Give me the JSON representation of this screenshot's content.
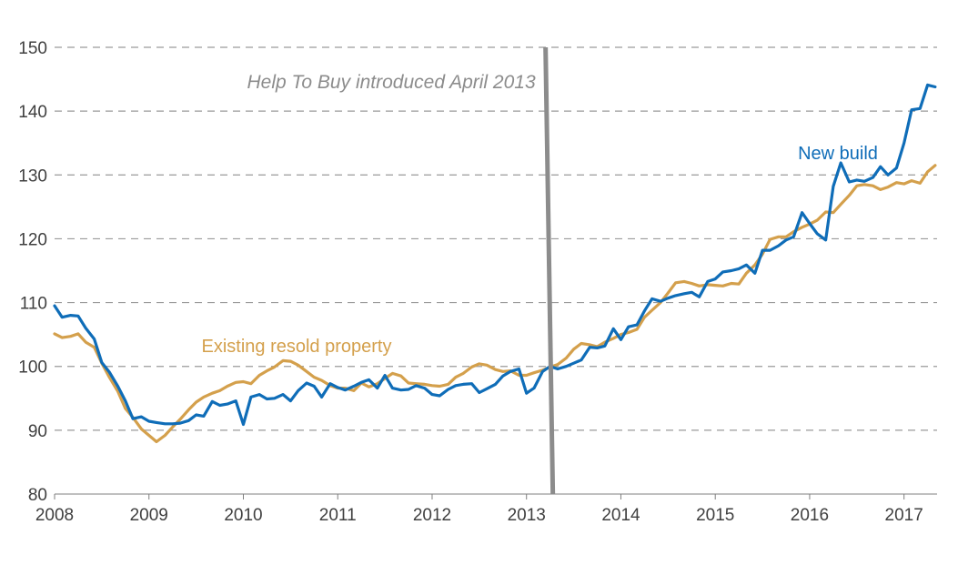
{
  "chart_data": {
    "type": "line",
    "title": "",
    "xlabel": "",
    "ylabel": "",
    "xlim": [
      2008,
      2017.35
    ],
    "ylim": [
      80,
      150
    ],
    "y_ticks": [
      80,
      90,
      100,
      110,
      120,
      130,
      140,
      150
    ],
    "x_ticks": [
      2008,
      2009,
      2010,
      2011,
      2012,
      2013,
      2014,
      2015,
      2016,
      2017
    ],
    "x_tick_labels": [
      "2008",
      "2009",
      "2010",
      "2011",
      "2012",
      "2013",
      "2014",
      "2015",
      "2016",
      "2017"
    ],
    "y_tick_labels": [
      "80",
      "90",
      "100",
      "110",
      "120",
      "130",
      "140",
      "150"
    ],
    "grid": "horizontal dashed",
    "annotation": {
      "text": "Help To Buy introduced April 2013",
      "x": 2013.25,
      "color": "#8c8c8c"
    },
    "series": [
      {
        "name": "New build",
        "color": "#0f6db8",
        "x": [
          2008.0,
          2008.08,
          2008.17,
          2008.25,
          2008.33,
          2008.42,
          2008.5,
          2008.58,
          2008.67,
          2008.75,
          2008.83,
          2008.92,
          2009.0,
          2009.08,
          2009.17,
          2009.25,
          2009.33,
          2009.42,
          2009.5,
          2009.58,
          2009.67,
          2009.75,
          2009.83,
          2009.92,
          2010.0,
          2010.08,
          2010.17,
          2010.25,
          2010.33,
          2010.42,
          2010.5,
          2010.58,
          2010.67,
          2010.75,
          2010.83,
          2010.92,
          2011.0,
          2011.08,
          2011.17,
          2011.25,
          2011.33,
          2011.42,
          2011.5,
          2011.58,
          2011.67,
          2011.75,
          2011.83,
          2011.92,
          2012.0,
          2012.08,
          2012.17,
          2012.25,
          2012.33,
          2012.42,
          2012.5,
          2012.58,
          2012.67,
          2012.75,
          2012.83,
          2012.92,
          2013.0,
          2013.08,
          2013.17,
          2013.25,
          2013.33,
          2013.42,
          2013.5,
          2013.58,
          2013.67,
          2013.75,
          2013.83,
          2013.92,
          2014.0,
          2014.08,
          2014.17,
          2014.25,
          2014.33,
          2014.42,
          2014.5,
          2014.58,
          2014.67,
          2014.75,
          2014.83,
          2014.92,
          2015.0,
          2015.08,
          2015.17,
          2015.25,
          2015.33,
          2015.42,
          2015.5,
          2015.58,
          2015.67,
          2015.75,
          2015.83,
          2015.92,
          2016.0,
          2016.08,
          2016.17,
          2016.25,
          2016.33,
          2016.42,
          2016.5,
          2016.58,
          2016.67,
          2016.75,
          2016.83,
          2016.92,
          2017.0,
          2017.08,
          2017.17,
          2017.25,
          2017.33
        ],
        "values": [
          109.5,
          107.7,
          108.0,
          107.9,
          106.0,
          104.3,
          100.6,
          99.1,
          96.9,
          94.6,
          91.8,
          92.1,
          91.4,
          91.2,
          91.0,
          91.0,
          91.1,
          91.5,
          92.4,
          92.2,
          94.5,
          93.9,
          94.1,
          94.6,
          90.9,
          95.2,
          95.6,
          94.9,
          95.0,
          95.6,
          94.6,
          96.2,
          97.4,
          96.9,
          95.2,
          97.3,
          96.7,
          96.3,
          96.9,
          97.5,
          97.9,
          96.6,
          98.6,
          96.6,
          96.3,
          96.4,
          97.0,
          96.6,
          95.6,
          95.4,
          96.4,
          97.0,
          97.2,
          97.3,
          95.9,
          96.5,
          97.2,
          98.5,
          99.2,
          99.6,
          95.8,
          96.6,
          99.2,
          100.0,
          99.6,
          100.0,
          100.5,
          101.0,
          103.0,
          102.9,
          103.2,
          105.9,
          104.2,
          106.2,
          106.5,
          108.7,
          110.6,
          110.2,
          110.7,
          111.1,
          111.4,
          111.6,
          110.9,
          113.3,
          113.7,
          114.8,
          115.0,
          115.3,
          115.9,
          114.6,
          118.2,
          118.2,
          118.9,
          119.8,
          120.3,
          124.1,
          122.4,
          120.8,
          119.8,
          128.2,
          131.9,
          128.9,
          129.2,
          129.0,
          129.6,
          131.3,
          130.0,
          131.1,
          135.0,
          140.2,
          140.4,
          144.1,
          143.8
        ]
      },
      {
        "name": "Existing resold property",
        "color": "#d4a04c",
        "x": [
          2008.0,
          2008.08,
          2008.17,
          2008.25,
          2008.33,
          2008.42,
          2008.5,
          2008.58,
          2008.67,
          2008.75,
          2008.83,
          2008.92,
          2009.0,
          2009.08,
          2009.17,
          2009.25,
          2009.33,
          2009.42,
          2009.5,
          2009.58,
          2009.67,
          2009.75,
          2009.83,
          2009.92,
          2010.0,
          2010.08,
          2010.17,
          2010.25,
          2010.33,
          2010.42,
          2010.5,
          2010.58,
          2010.67,
          2010.75,
          2010.83,
          2010.92,
          2011.0,
          2011.08,
          2011.17,
          2011.25,
          2011.33,
          2011.42,
          2011.5,
          2011.58,
          2011.67,
          2011.75,
          2011.83,
          2011.92,
          2012.0,
          2012.08,
          2012.17,
          2012.25,
          2012.33,
          2012.42,
          2012.5,
          2012.58,
          2012.67,
          2012.75,
          2012.83,
          2012.92,
          2013.0,
          2013.08,
          2013.17,
          2013.25,
          2013.33,
          2013.42,
          2013.5,
          2013.58,
          2013.67,
          2013.75,
          2013.83,
          2013.92,
          2014.0,
          2014.08,
          2014.17,
          2014.25,
          2014.33,
          2014.42,
          2014.5,
          2014.58,
          2014.67,
          2014.75,
          2014.83,
          2014.92,
          2015.0,
          2015.08,
          2015.17,
          2015.25,
          2015.33,
          2015.42,
          2015.5,
          2015.58,
          2015.67,
          2015.75,
          2015.83,
          2015.92,
          2016.0,
          2016.08,
          2016.17,
          2016.25,
          2016.33,
          2016.42,
          2016.5,
          2016.58,
          2016.67,
          2016.75,
          2016.83,
          2016.92,
          2017.0,
          2017.08,
          2017.17,
          2017.25,
          2017.33
        ],
        "values": [
          105.1,
          104.5,
          104.7,
          105.1,
          103.8,
          103.0,
          100.5,
          98.3,
          96.1,
          93.4,
          92.0,
          90.2,
          89.2,
          88.2,
          89.2,
          90.5,
          91.7,
          93.2,
          94.4,
          95.2,
          95.8,
          96.2,
          96.9,
          97.5,
          97.6,
          97.3,
          98.6,
          99.3,
          99.9,
          100.9,
          100.8,
          100.2,
          99.2,
          98.3,
          97.8,
          97.0,
          96.6,
          96.6,
          96.2,
          97.4,
          96.8,
          97.3,
          98.1,
          98.9,
          98.5,
          97.4,
          97.3,
          97.2,
          97.0,
          96.9,
          97.2,
          98.3,
          98.9,
          99.9,
          100.4,
          100.2,
          99.5,
          99.2,
          99.3,
          98.6,
          98.6,
          99.0,
          99.4,
          99.9,
          100.3,
          101.3,
          102.7,
          103.6,
          103.4,
          103.1,
          103.8,
          104.4,
          105.0,
          105.3,
          105.8,
          107.7,
          108.8,
          110.0,
          111.5,
          113.1,
          113.3,
          113.0,
          112.6,
          112.8,
          112.7,
          112.6,
          113.0,
          112.9,
          114.6,
          115.9,
          117.6,
          119.9,
          120.3,
          120.3,
          121.1,
          121.8,
          122.3,
          122.9,
          124.2,
          124.1,
          125.4,
          126.8,
          128.3,
          128.5,
          128.3,
          127.7,
          128.1,
          128.8,
          128.6,
          129.1,
          128.7,
          130.5,
          131.5
        ]
      }
    ],
    "series_label_positions": [
      "upper right near 2016",
      "above existing line near 2010"
    ]
  }
}
